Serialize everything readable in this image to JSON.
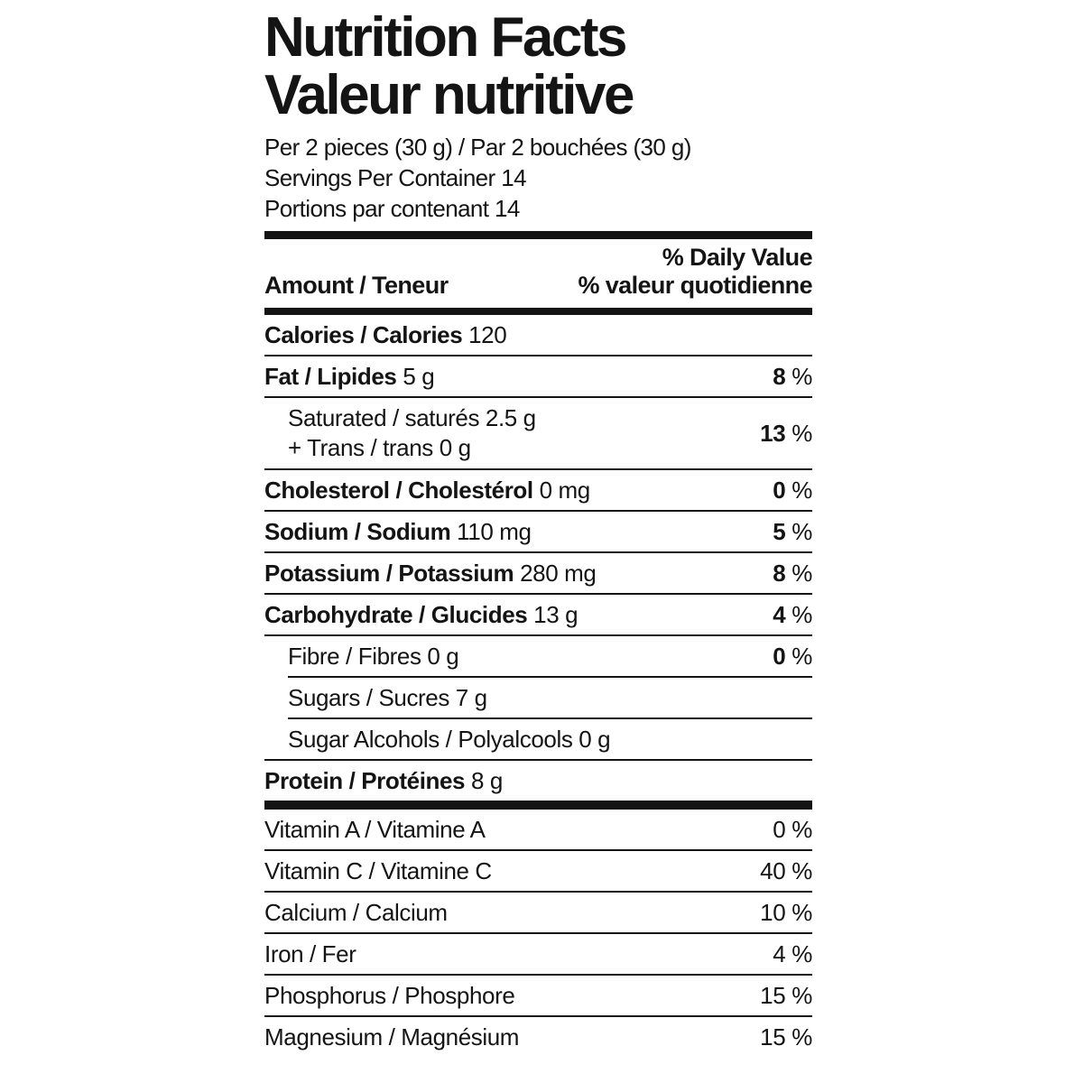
{
  "colors": {
    "ink": "#141414",
    "background": "#ffffff"
  },
  "label": {
    "title_en": "Nutrition Facts",
    "title_fr": "Valeur nutritive",
    "serving_line": "Per 2 pieces (30 g) / Par 2 bouchées (30 g)",
    "servings_per_container_en": "Servings Per Container 14",
    "servings_per_container_fr": "Portions par contenant 14",
    "header": {
      "daily_value_en": "% Daily Value",
      "amount": "Amount / Teneur",
      "daily_value_fr": "% valeur quotidienne"
    },
    "percent_sign": "%",
    "rows": [
      {
        "id": "calories",
        "bold": "Calories / Calories",
        "text": "120",
        "indent": false,
        "tall": false,
        "percent": null,
        "percent_bold": false,
        "divider_after": "thin"
      },
      {
        "id": "fat",
        "bold": "Fat / Lipides",
        "text": "5 g",
        "indent": false,
        "tall": false,
        "percent": "8",
        "percent_bold": true,
        "divider_after": "thin"
      },
      {
        "id": "saturated-trans",
        "bold": "",
        "text": "Saturated / saturés 2.5 g\n+ Trans / trans 0 g",
        "indent": true,
        "tall": true,
        "percent": "13",
        "percent_bold": true,
        "divider_after": "thin"
      },
      {
        "id": "cholesterol",
        "bold": "Cholesterol / Cholestérol",
        "text": "0 mg",
        "indent": false,
        "tall": false,
        "percent": "0",
        "percent_bold": true,
        "divider_after": "thin"
      },
      {
        "id": "sodium",
        "bold": "Sodium / Sodium",
        "text": "110 mg",
        "indent": false,
        "tall": false,
        "percent": "5",
        "percent_bold": true,
        "divider_after": "thin"
      },
      {
        "id": "potassium",
        "bold": "Potassium / Potassium",
        "text": "280 mg",
        "indent": false,
        "tall": false,
        "percent": "8",
        "percent_bold": true,
        "divider_after": "thin"
      },
      {
        "id": "carbohydrate",
        "bold": "Carbohydrate / Glucides",
        "text": "13 g",
        "indent": false,
        "tall": false,
        "percent": "4",
        "percent_bold": true,
        "divider_after": "thin"
      },
      {
        "id": "fibre",
        "bold": "",
        "text": "Fibre / Fibres 0 g",
        "indent": true,
        "tall": false,
        "percent": "0",
        "percent_bold": true,
        "divider_after": "thin-indent"
      },
      {
        "id": "sugars",
        "bold": "",
        "text": "Sugars / Sucres 7 g",
        "indent": true,
        "tall": false,
        "percent": null,
        "percent_bold": false,
        "divider_after": "thin-indent"
      },
      {
        "id": "sugar-alcohols",
        "bold": "",
        "text": "Sugar Alcohols / Polyalcools 0 g",
        "indent": true,
        "tall": false,
        "percent": null,
        "percent_bold": false,
        "divider_after": "thin"
      },
      {
        "id": "protein",
        "bold": "Protein / Protéines",
        "text": "8 g",
        "indent": false,
        "tall": false,
        "percent": null,
        "percent_bold": false,
        "divider_after": "bar"
      },
      {
        "id": "vitamin-a",
        "bold": "",
        "text": "Vitamin A / Vitamine A",
        "indent": false,
        "tall": false,
        "percent": "0",
        "percent_bold": false,
        "divider_after": "thin"
      },
      {
        "id": "vitamin-c",
        "bold": "",
        "text": "Vitamin C / Vitamine C",
        "indent": false,
        "tall": false,
        "percent": "40",
        "percent_bold": false,
        "divider_after": "thin"
      },
      {
        "id": "calcium",
        "bold": "",
        "text": "Calcium / Calcium",
        "indent": false,
        "tall": false,
        "percent": "10",
        "percent_bold": false,
        "divider_after": "thin"
      },
      {
        "id": "iron",
        "bold": "",
        "text": "Iron / Fer",
        "indent": false,
        "tall": false,
        "percent": "4",
        "percent_bold": false,
        "divider_after": "thin"
      },
      {
        "id": "phosphorus",
        "bold": "",
        "text": "Phosphorus / Phosphore",
        "indent": false,
        "tall": false,
        "percent": "15",
        "percent_bold": false,
        "divider_after": "thin"
      },
      {
        "id": "magnesium",
        "bold": "",
        "text": "Magnesium / Magnésium",
        "indent": false,
        "tall": false,
        "percent": "15",
        "percent_bold": false,
        "divider_after": "none"
      }
    ]
  }
}
